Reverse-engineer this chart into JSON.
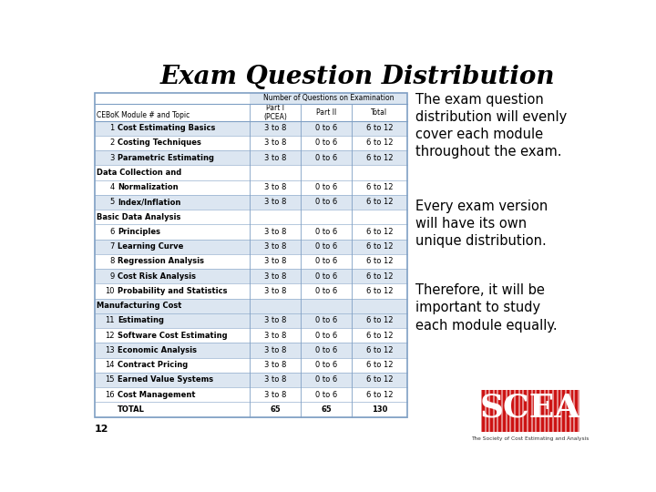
{
  "title": "Exam Question Distribution",
  "bg_color": "#ffffff",
  "table_header1": "Number of Questions on Examination",
  "table_subheaders": [
    "Part I\n(PCEA)",
    "Part II",
    "Total"
  ],
  "col0_label": "CEBoK Module # and Topic",
  "rows": [
    {
      "num": "1",
      "topic": "Cost Estimating Basics",
      "p1": "3 to 8",
      "p2": "0 to 6",
      "tot": "6 to 12",
      "shade": true,
      "bold_topic": true
    },
    {
      "num": "2",
      "topic": "Costing Techniques",
      "p1": "3 to 8",
      "p2": "0 to 6",
      "tot": "6 to 12",
      "shade": false,
      "bold_topic": true
    },
    {
      "num": "3",
      "topic": "Parametric Estimating",
      "p1": "3 to 8",
      "p2": "0 to 6",
      "tot": "6 to 12",
      "shade": true,
      "bold_topic": true
    },
    {
      "num": "",
      "topic": "Data Collection and",
      "p1": "",
      "p2": "",
      "tot": "",
      "shade": false,
      "bold_topic": true,
      "continuation": true
    },
    {
      "num": "4",
      "topic": "Normalization",
      "p1": "3 to 8",
      "p2": "0 to 6",
      "tot": "6 to 12",
      "shade": false,
      "bold_topic": true
    },
    {
      "num": "5",
      "topic": "Index/Inflation",
      "p1": "3 to 8",
      "p2": "0 to 6",
      "tot": "6 to 12",
      "shade": true,
      "bold_topic": true
    },
    {
      "num": "",
      "topic": "Basic Data Analysis",
      "p1": "",
      "p2": "",
      "tot": "",
      "shade": false,
      "bold_topic": true,
      "continuation": true
    },
    {
      "num": "6",
      "topic": "Principles",
      "p1": "3 to 8",
      "p2": "0 to 6",
      "tot": "6 to 12",
      "shade": false,
      "bold_topic": true
    },
    {
      "num": "7",
      "topic": "Learning Curve",
      "p1": "3 to 8",
      "p2": "0 to 6",
      "tot": "6 to 12",
      "shade": true,
      "bold_topic": true
    },
    {
      "num": "8",
      "topic": "Regression Analysis",
      "p1": "3 to 8",
      "p2": "0 to 6",
      "tot": "6 to 12",
      "shade": false,
      "bold_topic": true
    },
    {
      "num": "9",
      "topic": "Cost Risk Analysis",
      "p1": "3 to 8",
      "p2": "0 to 6",
      "tot": "6 to 12",
      "shade": true,
      "bold_topic": true
    },
    {
      "num": "10",
      "topic": "Probability and Statistics",
      "p1": "3 to 8",
      "p2": "0 to 6",
      "tot": "6 to 12",
      "shade": false,
      "bold_topic": true
    },
    {
      "num": "",
      "topic": "Manufacturing Cost",
      "p1": "",
      "p2": "",
      "tot": "",
      "shade": true,
      "bold_topic": true,
      "continuation": true
    },
    {
      "num": "11",
      "topic": "Estimating",
      "p1": "3 to 8",
      "p2": "0 to 6",
      "tot": "6 to 12",
      "shade": true,
      "bold_topic": true
    },
    {
      "num": "12",
      "topic": "Software Cost Estimating",
      "p1": "3 to 8",
      "p2": "0 to 6",
      "tot": "6 to 12",
      "shade": false,
      "bold_topic": true
    },
    {
      "num": "13",
      "topic": "Economic Analysis",
      "p1": "3 to 8",
      "p2": "0 to 6",
      "tot": "6 to 12",
      "shade": true,
      "bold_topic": true
    },
    {
      "num": "14",
      "topic": "Contract Pricing",
      "p1": "3 to 8",
      "p2": "0 to 6",
      "tot": "6 to 12",
      "shade": false,
      "bold_topic": true
    },
    {
      "num": "15",
      "topic": "Earned Value Systems",
      "p1": "3 to 8",
      "p2": "0 to 6",
      "tot": "6 to 12",
      "shade": true,
      "bold_topic": true
    },
    {
      "num": "16",
      "topic": "Cost Management",
      "p1": "3 to 8",
      "p2": "0 to 6",
      "tot": "6 to 12",
      "shade": false,
      "bold_topic": true
    },
    {
      "num": "",
      "topic": "TOTAL",
      "p1": "65",
      "p2": "65",
      "tot": "130",
      "shade": false,
      "bold_topic": true,
      "total_row": true
    }
  ],
  "text_block": [
    "The exam question\ndistribution will evenly\ncover each module\nthroughout the exam.",
    "Every exam version\nwill have its own\nunique distribution.",
    "Therefore, it will be\nimportant to study\neach module equally."
  ],
  "shade_color": "#dce6f1",
  "header_color": "#dce6f1",
  "border_color": "#7f9fc4",
  "footer_num": "12",
  "title_fontsize": 20,
  "table_fontsize": 6.0,
  "text_fontsize": 10.5
}
